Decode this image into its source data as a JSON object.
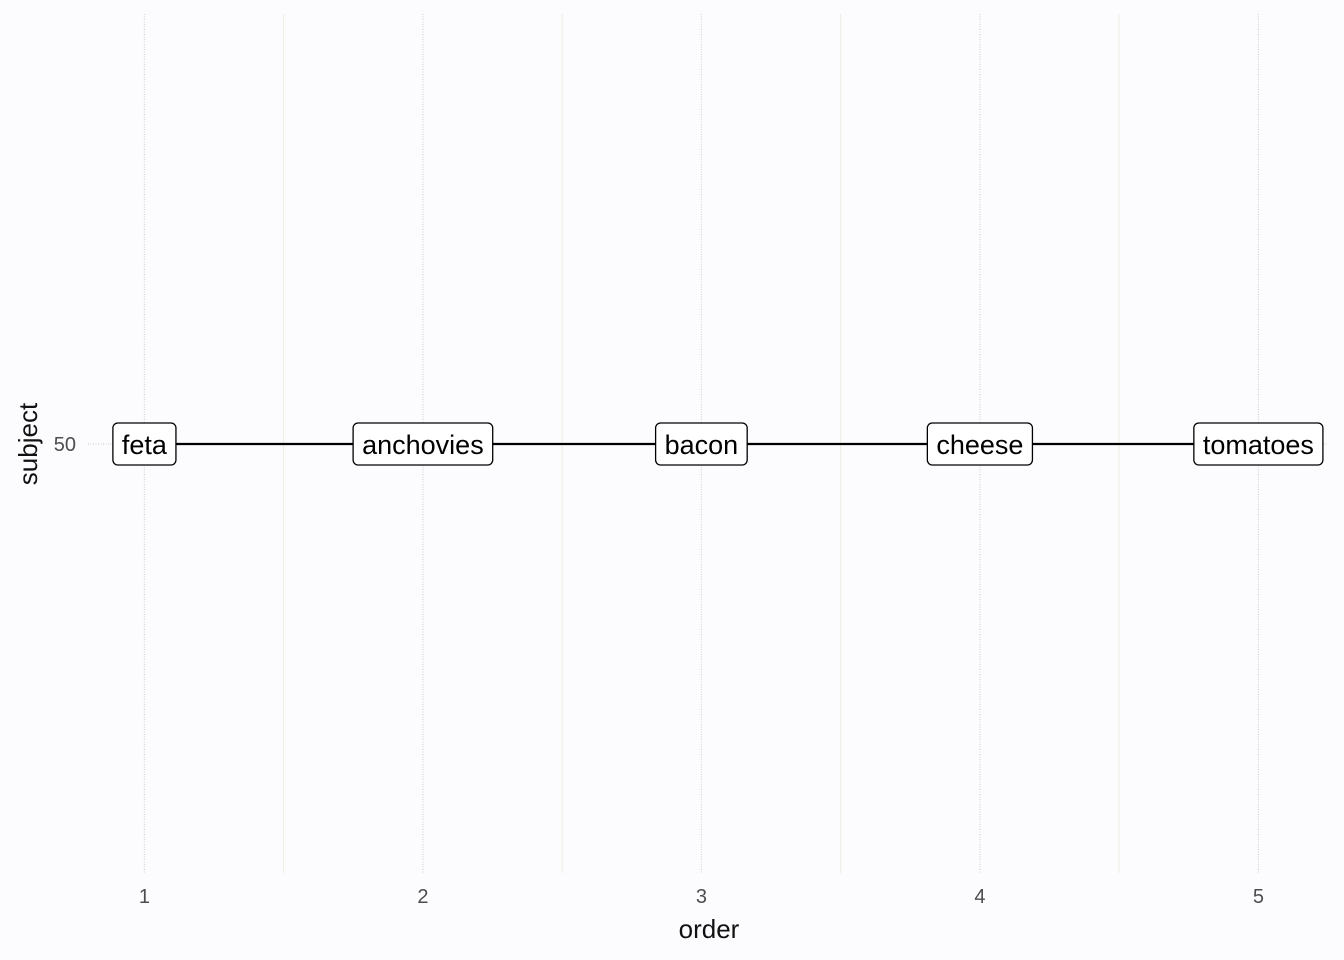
{
  "chart_data": {
    "type": "line",
    "title": "",
    "xlabel": "order",
    "ylabel": "subject",
    "x_ticks": [
      "1",
      "2",
      "3",
      "4",
      "5"
    ],
    "y_ticks": [
      "50"
    ],
    "xlim": [
      0.88,
      5.25
    ],
    "series": [
      {
        "x": [
          1,
          2,
          3,
          4,
          5
        ],
        "y": [
          50,
          50,
          50,
          50,
          50
        ],
        "labels": [
          "feta",
          "anchovies",
          "bacon",
          "cheese",
          "tomatoes"
        ]
      }
    ],
    "grid": true,
    "legend": "none"
  }
}
